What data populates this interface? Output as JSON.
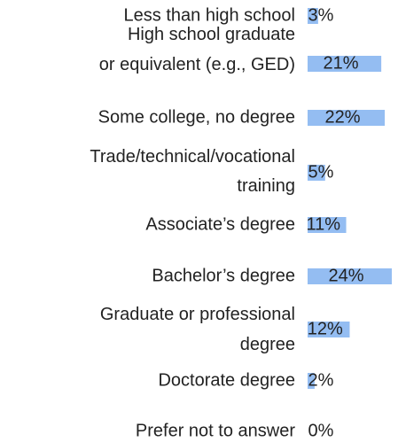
{
  "chart_data": {
    "type": "hbar",
    "categories": [
      "Less than high school",
      "High school graduate or equivalent (e.g., GED)",
      "Some college, no degree",
      "Trade/technical/vocational training",
      "Associate’s degree",
      "Bachelor’s degree",
      "Graduate or professional degree",
      "Doctorate degree",
      "Prefer not to answer"
    ],
    "values": [
      3,
      21,
      22,
      5,
      11,
      24,
      12,
      2,
      0
    ],
    "value_labels": [
      "3%",
      "21%",
      "22%",
      "5%",
      "11%",
      "24%",
      "12%",
      "2%",
      "0%"
    ],
    "color": "#94bdf2"
  }
}
